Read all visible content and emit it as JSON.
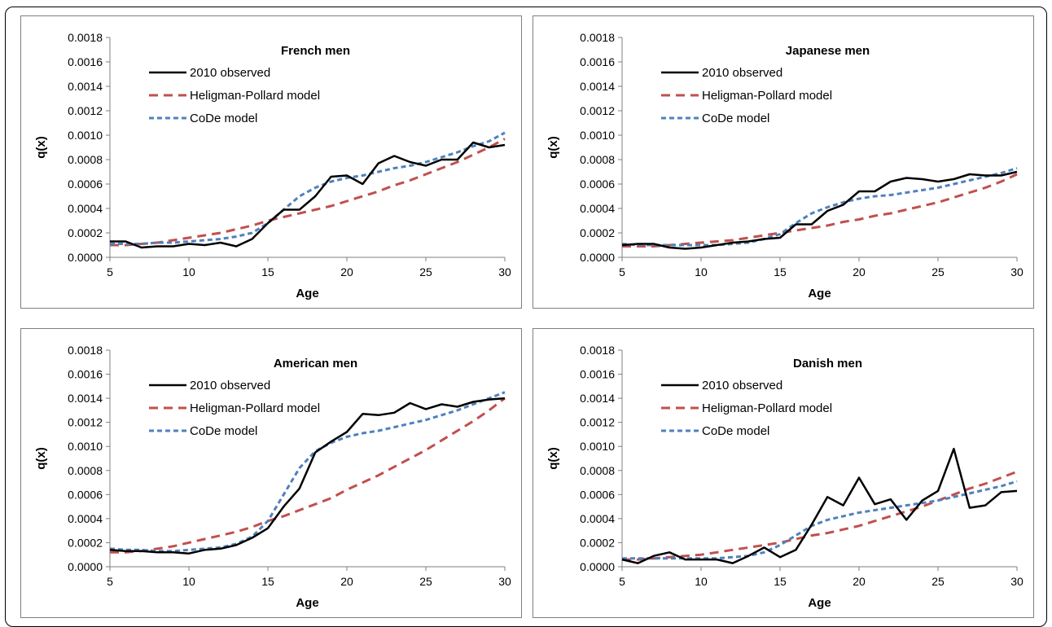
{
  "chart_data": [
    {
      "type": "line",
      "title": "French men",
      "xlabel": "Age",
      "ylabel": "q(x)",
      "xlim": [
        5,
        30
      ],
      "ylim": [
        0,
        0.0018
      ],
      "x_ticks": [
        "5",
        "10",
        "15",
        "20",
        "25",
        "30"
      ],
      "y_ticks": [
        "0.0000",
        "0.0002",
        "0.0004",
        "0.0006",
        "0.0008",
        "0.0010",
        "0.0012",
        "0.0014",
        "0.0016",
        "0.0018"
      ],
      "legend_position": "upper-left",
      "grid": false,
      "series": [
        {
          "name": "2010 observed",
          "color": "#000000",
          "style": "solid",
          "x": [
            5,
            6,
            7,
            8,
            9,
            10,
            11,
            12,
            13,
            14,
            15,
            16,
            17,
            18,
            19,
            20,
            21,
            22,
            23,
            24,
            25,
            26,
            27,
            28,
            29,
            30
          ],
          "values": [
            0.00013,
            0.00013,
            8e-05,
            9e-05,
            9e-05,
            0.00011,
            0.0001,
            0.00012,
            9e-05,
            0.00015,
            0.00028,
            0.00039,
            0.00039,
            0.0005,
            0.00066,
            0.00067,
            0.0006,
            0.00077,
            0.00083,
            0.00078,
            0.00075,
            0.0008,
            0.0008,
            0.00094,
            0.0009,
            0.00092
          ]
        },
        {
          "name": "Heligman-Pollard model",
          "color": "#c0504d",
          "style": "longdash",
          "x": [
            5,
            6,
            7,
            8,
            9,
            10,
            11,
            12,
            13,
            14,
            15,
            16,
            17,
            18,
            19,
            20,
            21,
            22,
            23,
            24,
            25,
            26,
            27,
            28,
            29,
            30
          ],
          "values": [
            0.0001,
            0.0001,
            0.00011,
            0.00012,
            0.00014,
            0.00016,
            0.00018,
            0.0002,
            0.00023,
            0.00026,
            0.0003,
            0.00033,
            0.00036,
            0.00039,
            0.00042,
            0.00046,
            0.0005,
            0.00054,
            0.00059,
            0.00063,
            0.00068,
            0.00073,
            0.00078,
            0.00084,
            0.0009,
            0.00097
          ]
        },
        {
          "name": "CoDe model",
          "color": "#4f81bd",
          "style": "shortdash",
          "x": [
            5,
            6,
            7,
            8,
            9,
            10,
            11,
            12,
            13,
            14,
            15,
            16,
            17,
            18,
            19,
            20,
            21,
            22,
            23,
            24,
            25,
            26,
            27,
            28,
            29,
            30
          ],
          "values": [
            0.00011,
            0.00011,
            0.00011,
            0.00012,
            0.00012,
            0.00013,
            0.00014,
            0.00015,
            0.00017,
            0.0002,
            0.00028,
            0.00039,
            0.0005,
            0.00057,
            0.00062,
            0.00065,
            0.00067,
            0.0007,
            0.00073,
            0.00075,
            0.00078,
            0.00082,
            0.00086,
            0.00091,
            0.00095,
            0.00102
          ]
        }
      ]
    },
    {
      "type": "line",
      "title": "Japanese men",
      "xlabel": "Age",
      "ylabel": "q(x)",
      "xlim": [
        5,
        30
      ],
      "ylim": [
        0,
        0.0018
      ],
      "x_ticks": [
        "5",
        "10",
        "15",
        "20",
        "25",
        "30"
      ],
      "y_ticks": [
        "0.0000",
        "0.0002",
        "0.0004",
        "0.0006",
        "0.0008",
        "0.0010",
        "0.0012",
        "0.0014",
        "0.0016",
        "0.0018"
      ],
      "legend_position": "upper-left",
      "grid": false,
      "series": [
        {
          "name": "2010 observed",
          "color": "#000000",
          "style": "solid",
          "x": [
            5,
            6,
            7,
            8,
            9,
            10,
            11,
            12,
            13,
            14,
            15,
            16,
            17,
            18,
            19,
            20,
            21,
            22,
            23,
            24,
            25,
            26,
            27,
            28,
            29,
            30
          ],
          "values": [
            0.0001,
            0.00011,
            0.00011,
            8e-05,
            7e-05,
            8e-05,
            0.0001,
            0.00012,
            0.00013,
            0.00015,
            0.00016,
            0.00027,
            0.00027,
            0.00038,
            0.00043,
            0.00054,
            0.00054,
            0.00062,
            0.00065,
            0.00064,
            0.00062,
            0.00064,
            0.00068,
            0.00067,
            0.00067,
            0.0007
          ]
        },
        {
          "name": "Heligman-Pollard model",
          "color": "#c0504d",
          "style": "longdash",
          "x": [
            5,
            6,
            7,
            8,
            9,
            10,
            11,
            12,
            13,
            14,
            15,
            16,
            17,
            18,
            19,
            20,
            21,
            22,
            23,
            24,
            25,
            26,
            27,
            28,
            29,
            30
          ],
          "values": [
            9e-05,
            9e-05,
            9e-05,
            0.0001,
            0.00011,
            0.00012,
            0.00013,
            0.00014,
            0.00016,
            0.00018,
            0.0002,
            0.00022,
            0.00024,
            0.00026,
            0.00029,
            0.00031,
            0.00034,
            0.00036,
            0.00039,
            0.00042,
            0.00045,
            0.00049,
            0.00053,
            0.00057,
            0.00062,
            0.00068
          ]
        },
        {
          "name": "CoDe model",
          "color": "#4f81bd",
          "style": "shortdash",
          "x": [
            5,
            6,
            7,
            8,
            9,
            10,
            11,
            12,
            13,
            14,
            15,
            16,
            17,
            18,
            19,
            20,
            21,
            22,
            23,
            24,
            25,
            26,
            27,
            28,
            29,
            30
          ],
          "values": [
            0.00011,
            0.0001,
            0.0001,
            0.0001,
            0.0001,
            0.0001,
            0.0001,
            0.00011,
            0.00012,
            0.00015,
            0.00019,
            0.00028,
            0.00036,
            0.00041,
            0.00045,
            0.00048,
            0.0005,
            0.00051,
            0.00053,
            0.00055,
            0.00057,
            0.0006,
            0.00063,
            0.00066,
            0.00069,
            0.00073
          ]
        }
      ]
    },
    {
      "type": "line",
      "title": "American men",
      "xlabel": "Age",
      "ylabel": "q(x)",
      "xlim": [
        5,
        30
      ],
      "ylim": [
        0,
        0.0018
      ],
      "x_ticks": [
        "5",
        "10",
        "15",
        "20",
        "25",
        "30"
      ],
      "y_ticks": [
        "0.0000",
        "0.0002",
        "0.0004",
        "0.0006",
        "0.0008",
        "0.0010",
        "0.0012",
        "0.0014",
        "0.0016",
        "0.0018"
      ],
      "legend_position": "upper-left",
      "grid": false,
      "series": [
        {
          "name": "2010 observed",
          "color": "#000000",
          "style": "solid",
          "x": [
            5,
            6,
            7,
            8,
            9,
            10,
            11,
            12,
            13,
            14,
            15,
            16,
            17,
            18,
            19,
            20,
            21,
            22,
            23,
            24,
            25,
            26,
            27,
            28,
            29,
            30
          ],
          "values": [
            0.00014,
            0.00013,
            0.00013,
            0.00012,
            0.00012,
            0.00011,
            0.00014,
            0.00015,
            0.00018,
            0.00024,
            0.00032,
            0.0005,
            0.00065,
            0.00095,
            0.00104,
            0.00112,
            0.00127,
            0.00126,
            0.00128,
            0.00136,
            0.00131,
            0.00135,
            0.00133,
            0.00137,
            0.00139,
            0.0014
          ]
        },
        {
          "name": "Heligman-Pollard model",
          "color": "#c0504d",
          "style": "longdash",
          "x": [
            5,
            6,
            7,
            8,
            9,
            10,
            11,
            12,
            13,
            14,
            15,
            16,
            17,
            18,
            19,
            20,
            21,
            22,
            23,
            24,
            25,
            26,
            27,
            28,
            29,
            30
          ],
          "values": [
            0.00012,
            0.00012,
            0.00013,
            0.00015,
            0.00017,
            0.0002,
            0.00023,
            0.00026,
            0.00029,
            0.00033,
            0.00038,
            0.00042,
            0.00047,
            0.00052,
            0.00057,
            0.00064,
            0.0007,
            0.00076,
            0.00083,
            0.0009,
            0.00097,
            0.00105,
            0.00113,
            0.00121,
            0.0013,
            0.0014
          ]
        },
        {
          "name": "CoDe model",
          "color": "#4f81bd",
          "style": "shortdash",
          "x": [
            5,
            6,
            7,
            8,
            9,
            10,
            11,
            12,
            13,
            14,
            15,
            16,
            17,
            18,
            19,
            20,
            21,
            22,
            23,
            24,
            25,
            26,
            27,
            28,
            29,
            30
          ],
          "values": [
            0.00015,
            0.00014,
            0.00014,
            0.00013,
            0.00013,
            0.00014,
            0.00015,
            0.00016,
            0.00019,
            0.00025,
            0.00038,
            0.0006,
            0.00082,
            0.00096,
            0.00103,
            0.00108,
            0.00111,
            0.00113,
            0.00116,
            0.00119,
            0.00122,
            0.00126,
            0.0013,
            0.00135,
            0.0014,
            0.00145
          ]
        }
      ]
    },
    {
      "type": "line",
      "title": "Danish men",
      "xlabel": "Age",
      "ylabel": "q(x)",
      "xlim": [
        5,
        30
      ],
      "ylim": [
        0,
        0.0018
      ],
      "x_ticks": [
        "5",
        "10",
        "15",
        "20",
        "25",
        "30"
      ],
      "y_ticks": [
        "0.0000",
        "0.0002",
        "0.0004",
        "0.0006",
        "0.0008",
        "0.0010",
        "0.0012",
        "0.0014",
        "0.0016",
        "0.0018"
      ],
      "legend_position": "upper-left",
      "grid": false,
      "series": [
        {
          "name": "2010 observed",
          "color": "#000000",
          "style": "solid",
          "x": [
            5,
            6,
            7,
            8,
            9,
            10,
            11,
            12,
            13,
            14,
            15,
            16,
            17,
            18,
            19,
            20,
            21,
            22,
            23,
            24,
            25,
            26,
            27,
            28,
            29,
            30
          ],
          "values": [
            6e-05,
            3e-05,
            9e-05,
            0.00012,
            6e-05,
            6e-05,
            6e-05,
            3e-05,
            9e-05,
            0.00016,
            8e-05,
            0.00014,
            0.00035,
            0.00058,
            0.00051,
            0.00074,
            0.00052,
            0.00056,
            0.00039,
            0.00055,
            0.00063,
            0.00098,
            0.00049,
            0.00051,
            0.00062,
            0.00063
          ]
        },
        {
          "name": "Heligman-Pollard model",
          "color": "#c0504d",
          "style": "longdash",
          "x": [
            5,
            6,
            7,
            8,
            9,
            10,
            11,
            12,
            13,
            14,
            15,
            16,
            17,
            18,
            19,
            20,
            21,
            22,
            23,
            24,
            25,
            26,
            27,
            28,
            29,
            30
          ],
          "values": [
            6e-05,
            6e-05,
            7e-05,
            8e-05,
            9e-05,
            0.0001,
            0.00012,
            0.00014,
            0.00016,
            0.00018,
            0.0002,
            0.00023,
            0.00026,
            0.00028,
            0.00031,
            0.00034,
            0.00038,
            0.00042,
            0.00046,
            0.0005,
            0.00055,
            0.0006,
            0.00065,
            0.00069,
            0.00074,
            0.00079
          ]
        },
        {
          "name": "CoDe model",
          "color": "#4f81bd",
          "style": "shortdash",
          "x": [
            5,
            6,
            7,
            8,
            9,
            10,
            11,
            12,
            13,
            14,
            15,
            16,
            17,
            18,
            19,
            20,
            21,
            22,
            23,
            24,
            25,
            26,
            27,
            28,
            29,
            30
          ],
          "values": [
            7e-05,
            7e-05,
            7e-05,
            7e-05,
            7e-05,
            7e-05,
            7e-05,
            8e-05,
            9e-05,
            0.00012,
            0.00018,
            0.00026,
            0.00034,
            0.00039,
            0.00042,
            0.00045,
            0.00047,
            0.00049,
            0.00051,
            0.00053,
            0.00055,
            0.00058,
            0.00061,
            0.00064,
            0.00067,
            0.00071
          ]
        }
      ]
    }
  ]
}
